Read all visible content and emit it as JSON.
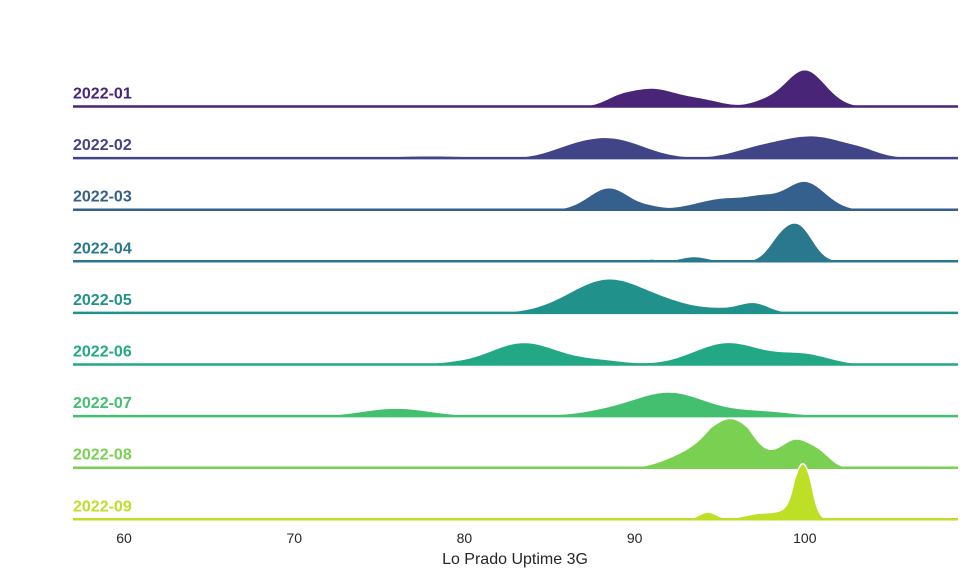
{
  "chart_data": {
    "type": "area",
    "subtype": "ridgeline",
    "title": "",
    "xlabel": "Lo Prado Uptime 3G",
    "ylabel": "",
    "xlim": [
      57,
      109
    ],
    "xticks": [
      60,
      70,
      80,
      90,
      100
    ],
    "grid": false,
    "legend": "none",
    "series": [
      {
        "name": "2022-01",
        "color": "#482576",
        "peaks": [
          [
            89,
            0.8,
            0.12
          ],
          [
            91,
            1.5,
            0.45
          ],
          [
            94,
            1.2,
            0.15
          ],
          [
            100,
            1.2,
            0.92
          ],
          [
            97.5,
            0.8,
            0.1
          ]
        ]
      },
      {
        "name": "2022-02",
        "color": "#414487",
        "peaks": [
          [
            78,
            2.5,
            0.06
          ],
          [
            86,
            1.3,
            0.1
          ],
          [
            88.5,
            2.0,
            0.5
          ],
          [
            97,
            1.5,
            0.15
          ],
          [
            100.5,
            2.2,
            0.55
          ],
          [
            103.5,
            0.8,
            0.06
          ]
        ]
      },
      {
        "name": "2022-03",
        "color": "#355F8D",
        "peaks": [
          [
            88.5,
            1.2,
            0.55
          ],
          [
            91,
            0.6,
            0.05
          ],
          [
            95.5,
            1.8,
            0.3
          ],
          [
            100,
            1.2,
            0.7
          ],
          [
            97.5,
            0.8,
            0.15
          ]
        ]
      },
      {
        "name": "2022-04",
        "color": "#2A788E",
        "peaks": [
          [
            91,
            0.3,
            0.06
          ],
          [
            93.5,
            0.8,
            0.12
          ],
          [
            96,
            0.5,
            0.03
          ],
          [
            98.5,
            0.7,
            0.45
          ],
          [
            99.7,
            0.8,
            0.82
          ]
        ]
      },
      {
        "name": "2022-05",
        "color": "#21918C",
        "peaks": [
          [
            88.5,
            2.3,
            0.85
          ],
          [
            92.5,
            1.5,
            0.12
          ],
          [
            97,
            0.9,
            0.25
          ],
          [
            95,
            1.0,
            0.08
          ]
        ]
      },
      {
        "name": "2022-06",
        "color": "#22A884",
        "peaks": [
          [
            79,
            1.0,
            0.03
          ],
          [
            83.5,
            2.0,
            0.55
          ],
          [
            88,
            1.5,
            0.1
          ],
          [
            95.5,
            2.0,
            0.55
          ],
          [
            100,
            1.5,
            0.25
          ]
        ]
      },
      {
        "name": "2022-07",
        "color": "#44BF70",
        "peaks": [
          [
            76,
            2.0,
            0.2
          ],
          [
            88,
            1.5,
            0.08
          ],
          [
            92,
            2.2,
            0.6
          ],
          [
            97.5,
            1.8,
            0.12
          ],
          [
            84,
            1.5,
            0.03
          ]
        ]
      },
      {
        "name": "2022-08",
        "color": "#7AD151",
        "peaks": [
          [
            83.5,
            0.5,
            0.05
          ],
          [
            92.5,
            1.2,
            0.1
          ],
          [
            95.8,
            1.2,
            1.2
          ],
          [
            94,
            1.5,
            0.35
          ],
          [
            99.5,
            1.0,
            0.7
          ],
          [
            101,
            0.6,
            0.2
          ]
        ]
      },
      {
        "name": "2022-09",
        "color": "#BDDF26",
        "peaks": [
          [
            94.3,
            0.5,
            0.18
          ],
          [
            97.5,
            1.0,
            0.15
          ],
          [
            99.9,
            0.45,
            1.6
          ],
          [
            99.0,
            0.6,
            0.15
          ]
        ]
      }
    ]
  }
}
